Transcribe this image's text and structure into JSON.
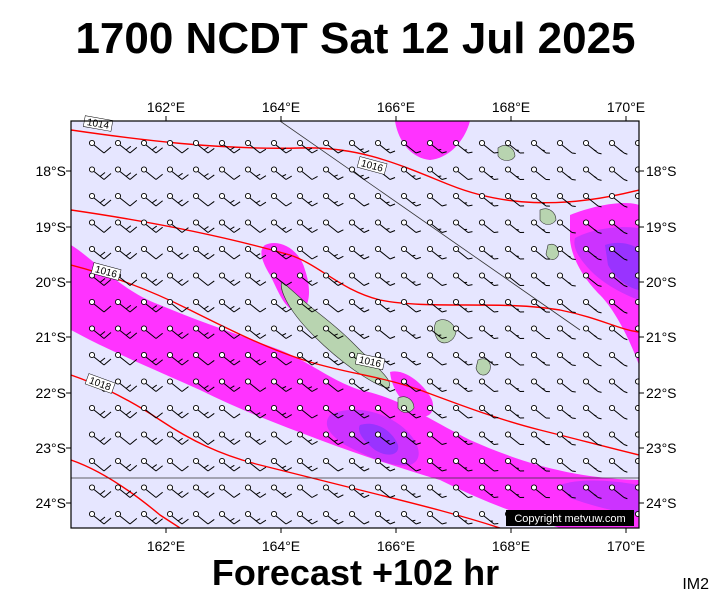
{
  "header": {
    "title": "1700 NCDT Sat 12 Jul 2025"
  },
  "footer": {
    "forecast": "Forecast +102 hr",
    "tag": "IM2"
  },
  "map": {
    "copyright": "Copyright metvuw.com",
    "lon_labels": [
      "162°E",
      "164°E",
      "166°E",
      "168°E",
      "170°E"
    ],
    "lat_labels": [
      "18°S",
      "19°S",
      "20°S",
      "21°S",
      "22°S",
      "23°S",
      "24°S"
    ],
    "isobar_labels": [
      "1014",
      "1016",
      "1016",
      "1016",
      "1018"
    ],
    "colors": {
      "background": "#e6e6ff",
      "rain_light": "#ff33ff",
      "rain_medium": "#cc33ff",
      "rain_heavy": "#9933ff",
      "isobar": "#ff0000",
      "land": "#b8d4b0"
    }
  }
}
